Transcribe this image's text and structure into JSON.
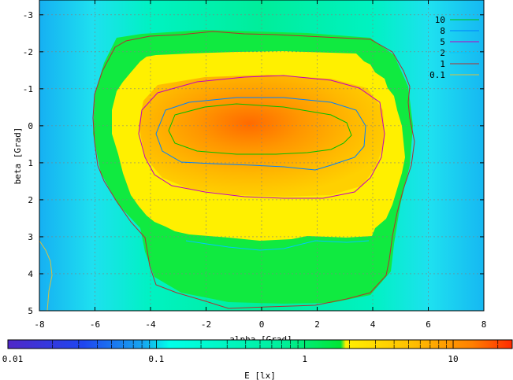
{
  "chart_data": {
    "type": "heatmap",
    "xlabel": "alpha [Grad]",
    "ylabel": "beta [Grad]",
    "xlim": [
      -8,
      8
    ],
    "ylim": [
      -3.4,
      5
    ],
    "y_inverted": true,
    "x_ticks": [
      "-8",
      "-6",
      "-4",
      "-2",
      "0",
      "2",
      "4",
      "6",
      "8"
    ],
    "x_tick_values": [
      -8,
      -6,
      -4,
      -2,
      0,
      2,
      4,
      6,
      8
    ],
    "y_ticks": [
      "-3",
      "-2",
      "-1",
      "0",
      "1",
      "2",
      "3",
      "4",
      "5"
    ],
    "y_tick_values": [
      -3,
      -2,
      -1,
      0,
      1,
      2,
      3,
      4,
      5
    ],
    "grid": true,
    "colorbar": {
      "label": "E [lx]",
      "scale": "log",
      "range": [
        0.01,
        25
      ],
      "ticks": [
        "0.01",
        "0.1",
        "1",
        "10"
      ],
      "tick_values": [
        0.01,
        0.1,
        1,
        10
      ],
      "colormap": [
        "#5028c8",
        "#1e46f0",
        "#16a8f0",
        "#00ffea",
        "#00f098",
        "#00e632",
        "#fff000",
        "#ffc800",
        "#ff8a00",
        "#ff2a00"
      ]
    },
    "contours": [
      {
        "level": "10",
        "color": "#00c000",
        "alpha_range": [
          -3.6,
          3.3
        ],
        "beta_range": [
          -0.6,
          1.2
        ]
      },
      {
        "level": "8",
        "color": "#0080ff",
        "alpha_range": [
          -4.0,
          3.8
        ],
        "beta_range": [
          -0.8,
          1.4
        ]
      },
      {
        "level": "5",
        "color": "#c000c0",
        "alpha_range": [
          -4.6,
          4.5
        ],
        "beta_range": [
          -1.3,
          2.0
        ]
      },
      {
        "level": "2",
        "color": "#00c8ff",
        "alpha_range": [
          -5.5,
          5.2
        ],
        "beta_range": [
          -1.9,
          3.3
        ]
      },
      {
        "level": "1",
        "color": "#b03030",
        "alpha_range": [
          -6.1,
          5.6
        ],
        "beta_range": [
          -2.5,
          5.0
        ]
      },
      {
        "level": "0.1",
        "color": "#d8c040",
        "alpha_range": [
          -8.0,
          -7.6
        ],
        "beta_range": [
          3.2,
          5.0
        ]
      }
    ],
    "legend": [
      "10",
      "8",
      "5",
      "2",
      "1",
      "0.1"
    ],
    "legend_position": "top-right"
  }
}
